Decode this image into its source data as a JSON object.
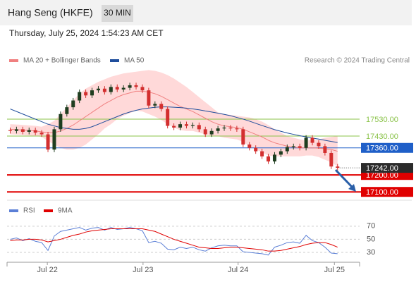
{
  "header": {
    "title": "Hang Seng (HKFE)",
    "interval": "30 MIN",
    "timestamp": "Thursday, July 25, 2024 1:54:23 AM CET"
  },
  "chart_data": [
    {
      "type": "candlestick",
      "credit": "Research © 2024 Trading Central",
      "xlim": [
        0,
        56
      ],
      "ylim": [
        17055,
        17838
      ],
      "up_color": "#1f3d1f",
      "down_color": "#d32f2f",
      "open": [
        17465,
        17460,
        17470,
        17455,
        17465,
        17450,
        17440,
        17350,
        17470,
        17560,
        17600,
        17640,
        17690,
        17670,
        17700,
        17710,
        17690,
        17720,
        17705,
        17715,
        17730,
        17720,
        17700,
        17610,
        17620,
        17590,
        17490,
        17480,
        17500,
        17490,
        17495,
        17470,
        17440,
        17460,
        17475,
        17480,
        17475,
        17470,
        17380,
        17360,
        17340,
        17310,
        17280,
        17320,
        17340,
        17365,
        17370,
        17360,
        17420,
        17390,
        17370,
        17330,
        17250
      ],
      "high": [
        17480,
        17485,
        17485,
        17480,
        17480,
        17465,
        17455,
        17485,
        17575,
        17615,
        17655,
        17705,
        17705,
        17715,
        17725,
        17725,
        17735,
        17735,
        17730,
        17745,
        17745,
        17735,
        17715,
        17635,
        17635,
        17605,
        17505,
        17515,
        17515,
        17510,
        17510,
        17485,
        17475,
        17490,
        17495,
        17495,
        17490,
        17485,
        17395,
        17375,
        17355,
        17325,
        17335,
        17355,
        17380,
        17385,
        17385,
        17435,
        17435,
        17405,
        17385,
        17345,
        17265
      ],
      "low": [
        17445,
        17445,
        17440,
        17440,
        17435,
        17425,
        17335,
        17335,
        17455,
        17545,
        17585,
        17625,
        17655,
        17655,
        17685,
        17675,
        17675,
        17690,
        17690,
        17700,
        17705,
        17685,
        17595,
        17595,
        17575,
        17475,
        17465,
        17465,
        17475,
        17475,
        17455,
        17425,
        17425,
        17445,
        17460,
        17460,
        17455,
        17365,
        17345,
        17325,
        17295,
        17265,
        17265,
        17305,
        17325,
        17350,
        17345,
        17345,
        17375,
        17355,
        17315,
        17235,
        17227
      ],
      "close": [
        17460,
        17470,
        17455,
        17465,
        17450,
        17440,
        17350,
        17470,
        17560,
        17600,
        17640,
        17690,
        17670,
        17700,
        17710,
        17690,
        17720,
        17705,
        17715,
        17730,
        17720,
        17700,
        17610,
        17620,
        17590,
        17490,
        17480,
        17500,
        17490,
        17495,
        17470,
        17440,
        17460,
        17475,
        17480,
        17475,
        17470,
        17380,
        17360,
        17340,
        17310,
        17280,
        17320,
        17340,
        17365,
        17370,
        17360,
        17420,
        17390,
        17370,
        17330,
        17250,
        17242
      ],
      "series": [
        {
          "name": "MA 20 + Bollinger Bands",
          "color": "#f08080",
          "band_color": "#ffd9d9",
          "values": [
            17470,
            17468,
            17466,
            17463,
            17460,
            17455,
            17450,
            17450,
            17460,
            17475,
            17495,
            17520,
            17545,
            17570,
            17595,
            17620,
            17640,
            17660,
            17675,
            17685,
            17695,
            17695,
            17690,
            17680,
            17665,
            17645,
            17625,
            17605,
            17590,
            17575,
            17555,
            17535,
            17515,
            17500,
            17490,
            17485,
            17480,
            17470,
            17455,
            17440,
            17425,
            17405,
            17390,
            17380,
            17370,
            17365,
            17360,
            17360,
            17360,
            17358,
            17355,
            17350,
            17340
          ],
          "upper": [
            17500,
            17498,
            17496,
            17493,
            17490,
            17485,
            17500,
            17520,
            17560,
            17600,
            17640,
            17680,
            17710,
            17730,
            17750,
            17765,
            17780,
            17790,
            17800,
            17805,
            17810,
            17815,
            17820,
            17815,
            17805,
            17790,
            17770,
            17745,
            17720,
            17690,
            17660,
            17630,
            17600,
            17570,
            17560,
            17555,
            17550,
            17545,
            17540,
            17530,
            17515,
            17495,
            17470,
            17450,
            17430,
            17420,
            17410,
            17405,
            17405,
            17410,
            17420,
            17425,
            17430
          ],
          "lower": [
            17440,
            17438,
            17436,
            17433,
            17430,
            17425,
            17400,
            17380,
            17360,
            17350,
            17350,
            17360,
            17380,
            17410,
            17440,
            17475,
            17500,
            17530,
            17550,
            17565,
            17580,
            17575,
            17560,
            17545,
            17525,
            17500,
            17480,
            17465,
            17460,
            17460,
            17450,
            17440,
            17430,
            17430,
            17420,
            17415,
            17410,
            17395,
            17370,
            17350,
            17335,
            17315,
            17310,
            17310,
            17310,
            17310,
            17310,
            17315,
            17315,
            17306,
            17290,
            17275,
            17250
          ]
        },
        {
          "name": "MA 50",
          "color": "#1f4e9c",
          "values": [
            17590,
            17575,
            17560,
            17545,
            17530,
            17515,
            17500,
            17490,
            17480,
            17475,
            17470,
            17470,
            17475,
            17485,
            17500,
            17515,
            17530,
            17545,
            17560,
            17572,
            17582,
            17590,
            17595,
            17600,
            17602,
            17602,
            17600,
            17598,
            17595,
            17590,
            17585,
            17578,
            17572,
            17565,
            17558,
            17550,
            17540,
            17530,
            17518,
            17505,
            17492,
            17480,
            17468,
            17458,
            17448,
            17440,
            17432,
            17425,
            17418,
            17412,
            17405,
            17398,
            17392
          ]
        }
      ],
      "levels": [
        {
          "value": 17530,
          "label": "17530.00",
          "color": "#8bc34a",
          "boxed": false
        },
        {
          "value": 17430,
          "label": "17430.00",
          "color": "#8bc34a",
          "boxed": false
        },
        {
          "value": 17360,
          "label": "17360.00",
          "color": "#1f5fc8",
          "boxed": true
        },
        {
          "value": 17200,
          "label": "17200.00",
          "color": "#e00000",
          "boxed": true
        },
        {
          "value": 17100,
          "label": "17100.00",
          "color": "#e00000",
          "boxed": true
        }
      ],
      "last_price": {
        "value": 17242,
        "label": "17242.00",
        "color": "#2b2b2b"
      }
    },
    {
      "type": "line",
      "xlim": [
        0,
        56
      ],
      "ylim": [
        15,
        87
      ],
      "yticks": [
        30,
        50,
        70
      ],
      "xticks": [
        {
          "value": 6.4,
          "label": "Jul 22"
        },
        {
          "value": 21.6,
          "label": "Jul 23"
        },
        {
          "value": 36.7,
          "label": "Jul 24"
        },
        {
          "value": 52,
          "label": "Jul 25"
        }
      ],
      "grid": true,
      "series": [
        {
          "name": "RSI",
          "color": "#5b7fd6",
          "values": [
            50,
            52,
            48,
            51,
            47,
            45,
            33,
            55,
            62,
            64,
            66,
            68,
            64,
            67,
            68,
            64,
            68,
            65,
            66,
            68,
            66,
            63,
            45,
            47,
            44,
            35,
            34,
            38,
            36,
            38,
            34,
            32,
            37,
            40,
            41,
            40,
            40,
            31,
            30,
            29,
            28,
            26,
            38,
            41,
            45,
            46,
            44,
            56,
            48,
            45,
            38,
            29,
            28
          ]
        },
        {
          "name": "9MA",
          "color": "#e00000",
          "values": [
            48,
            49,
            49,
            50,
            50,
            49,
            46,
            48,
            50,
            53,
            56,
            58,
            61,
            63,
            64,
            65,
            66,
            66,
            66,
            66,
            66,
            66,
            64,
            62,
            58,
            54,
            50,
            47,
            44,
            41,
            38,
            37,
            36,
            36,
            37,
            38,
            38,
            37,
            36,
            35,
            34,
            32,
            32,
            33,
            35,
            37,
            39,
            42,
            44,
            45,
            45,
            42,
            38
          ]
        }
      ]
    }
  ]
}
